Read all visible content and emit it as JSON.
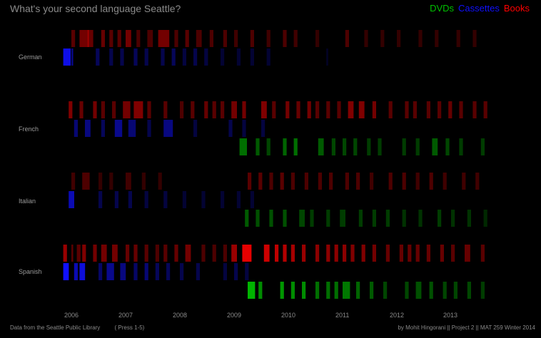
{
  "title": "What's your second language Seattle?",
  "legend": {
    "dvds": {
      "label": "DVDs",
      "color": "#00c000"
    },
    "cassettes": {
      "label": "Cassettes",
      "color": "#1010ff"
    },
    "books": {
      "label": "Books",
      "color": "#ff0000"
    }
  },
  "footer": {
    "source": "Data from the Seattle Public Library",
    "press": "( Press 1-5)",
    "credit": "by Mohit Hingorani || Project 2 || MAT 259 Winter 2014"
  },
  "chart_data": {
    "type": "heatmap",
    "title": "What's your second language Seattle?",
    "x_range": [
      2005.75,
      2013.85
    ],
    "years": [
      "2006",
      "2007",
      "2008",
      "2009",
      "2010",
      "2011",
      "2012",
      "2013"
    ],
    "languages": [
      {
        "name": "German",
        "books": [
          [
            2006.0,
            2,
            0.35
          ],
          [
            2006.15,
            5,
            0.45
          ],
          [
            2006.3,
            3,
            0.4
          ],
          [
            2006.55,
            2,
            0.4
          ],
          [
            2006.7,
            2,
            0.35
          ],
          [
            2006.85,
            2,
            0.35
          ],
          [
            2007.0,
            3,
            0.45
          ],
          [
            2007.2,
            2,
            0.3
          ],
          [
            2007.4,
            3,
            0.3
          ],
          [
            2007.6,
            6,
            0.45
          ],
          [
            2007.9,
            2,
            0.3
          ],
          [
            2008.1,
            2,
            0.35
          ],
          [
            2008.3,
            3,
            0.3
          ],
          [
            2008.55,
            2,
            0.3
          ],
          [
            2008.8,
            2,
            0.3
          ],
          [
            2009.0,
            2,
            0.25
          ],
          [
            2009.3,
            2,
            0.3
          ],
          [
            2009.6,
            2,
            0.25
          ],
          [
            2009.9,
            2,
            0.3
          ],
          [
            2010.1,
            2,
            0.25
          ],
          [
            2010.5,
            2,
            0.2
          ],
          [
            2011.05,
            2,
            0.3
          ],
          [
            2011.4,
            2,
            0.2
          ],
          [
            2011.7,
            2,
            0.2
          ],
          [
            2012.0,
            2,
            0.2
          ],
          [
            2012.4,
            2,
            0.2
          ],
          [
            2012.7,
            2,
            0.2
          ],
          [
            2013.1,
            2,
            0.2
          ],
          [
            2013.4,
            2,
            0.2
          ]
        ],
        "cassettes": [
          [
            2005.85,
            4,
            0.9
          ],
          [
            2006.0,
            1,
            0.5
          ],
          [
            2006.45,
            2,
            0.35
          ],
          [
            2006.7,
            2,
            0.3
          ],
          [
            2006.9,
            2,
            0.3
          ],
          [
            2007.15,
            2,
            0.35
          ],
          [
            2007.35,
            2,
            0.3
          ],
          [
            2007.65,
            2,
            0.3
          ],
          [
            2007.85,
            2,
            0.35
          ],
          [
            2008.05,
            2,
            0.25
          ],
          [
            2008.25,
            2,
            0.3
          ],
          [
            2008.45,
            2,
            0.25
          ],
          [
            2008.75,
            2,
            0.2
          ],
          [
            2009.05,
            2,
            0.2
          ],
          [
            2009.3,
            2,
            0.2
          ],
          [
            2009.6,
            2,
            0.2
          ],
          [
            2010.7,
            1,
            0.15
          ]
        ],
        "dvds": []
      },
      {
        "name": "French",
        "books": [
          [
            2005.95,
            2,
            0.5
          ],
          [
            2006.15,
            2,
            0.4
          ],
          [
            2006.4,
            2,
            0.45
          ],
          [
            2006.55,
            2,
            0.35
          ],
          [
            2006.75,
            2,
            0.35
          ],
          [
            2006.95,
            4,
            0.45
          ],
          [
            2007.15,
            5,
            0.5
          ],
          [
            2007.4,
            2,
            0.35
          ],
          [
            2007.7,
            2,
            0.35
          ],
          [
            2008.0,
            2,
            0.3
          ],
          [
            2008.2,
            2,
            0.35
          ],
          [
            2008.45,
            2,
            0.4
          ],
          [
            2008.6,
            2,
            0.35
          ],
          [
            2008.75,
            2,
            0.35
          ],
          [
            2008.95,
            3,
            0.45
          ],
          [
            2009.15,
            2,
            0.45
          ],
          [
            2009.5,
            3,
            0.5
          ],
          [
            2009.7,
            2,
            0.35
          ],
          [
            2009.95,
            2,
            0.45
          ],
          [
            2010.15,
            2,
            0.4
          ],
          [
            2010.35,
            2,
            0.45
          ],
          [
            2010.5,
            2,
            0.35
          ],
          [
            2010.7,
            2,
            0.35
          ],
          [
            2010.9,
            2,
            0.35
          ],
          [
            2011.1,
            3,
            0.5
          ],
          [
            2011.3,
            3,
            0.5
          ],
          [
            2011.55,
            2,
            0.45
          ],
          [
            2011.85,
            2,
            0.35
          ],
          [
            2012.15,
            2,
            0.35
          ],
          [
            2012.3,
            2,
            0.35
          ],
          [
            2012.55,
            2,
            0.35
          ],
          [
            2012.75,
            2,
            0.35
          ],
          [
            2012.95,
            2,
            0.4
          ],
          [
            2013.15,
            2,
            0.35
          ],
          [
            2013.4,
            2,
            0.35
          ],
          [
            2013.6,
            2,
            0.35
          ]
        ],
        "cassettes": [
          [
            2006.05,
            2,
            0.45
          ],
          [
            2006.25,
            3,
            0.5
          ],
          [
            2006.55,
            2,
            0.35
          ],
          [
            2006.8,
            4,
            0.55
          ],
          [
            2007.05,
            4,
            0.45
          ],
          [
            2007.4,
            2,
            0.3
          ],
          [
            2007.7,
            5,
            0.5
          ],
          [
            2008.25,
            2,
            0.25
          ],
          [
            2008.9,
            2,
            0.3
          ],
          [
            2009.15,
            2,
            0.25
          ],
          [
            2009.5,
            2,
            0.25
          ]
        ],
        "dvds": [
          [
            2009.1,
            4,
            0.55
          ],
          [
            2009.4,
            2,
            0.45
          ],
          [
            2009.6,
            2,
            0.35
          ],
          [
            2009.9,
            2,
            0.5
          ],
          [
            2010.1,
            2,
            0.55
          ],
          [
            2010.55,
            3,
            0.45
          ],
          [
            2010.8,
            2,
            0.35
          ],
          [
            2011.0,
            2,
            0.35
          ],
          [
            2011.2,
            2,
            0.35
          ],
          [
            2011.45,
            2,
            0.3
          ],
          [
            2011.65,
            2,
            0.3
          ],
          [
            2012.1,
            2,
            0.3
          ],
          [
            2012.35,
            2,
            0.3
          ],
          [
            2012.65,
            3,
            0.45
          ],
          [
            2012.9,
            2,
            0.35
          ],
          [
            2013.15,
            2,
            0.3
          ],
          [
            2013.55,
            2,
            0.3
          ]
        ]
      },
      {
        "name": "Italian",
        "books": [
          [
            2006.0,
            2,
            0.25
          ],
          [
            2006.2,
            4,
            0.3
          ],
          [
            2006.5,
            2,
            0.2
          ],
          [
            2006.7,
            2,
            0.2
          ],
          [
            2007.0,
            3,
            0.25
          ],
          [
            2007.3,
            2,
            0.2
          ],
          [
            2007.6,
            2,
            0.2
          ],
          [
            2009.25,
            2,
            0.35
          ],
          [
            2009.45,
            2,
            0.35
          ],
          [
            2009.65,
            2,
            0.3
          ],
          [
            2009.85,
            2,
            0.35
          ],
          [
            2010.05,
            2,
            0.3
          ],
          [
            2010.3,
            2,
            0.3
          ],
          [
            2010.55,
            2,
            0.3
          ],
          [
            2010.75,
            2,
            0.3
          ],
          [
            2011.05,
            2,
            0.3
          ],
          [
            2011.25,
            2,
            0.3
          ],
          [
            2011.5,
            2,
            0.25
          ],
          [
            2011.85,
            2,
            0.3
          ],
          [
            2012.1,
            2,
            0.3
          ],
          [
            2012.35,
            2,
            0.25
          ],
          [
            2012.6,
            2,
            0.3
          ],
          [
            2012.85,
            2,
            0.25
          ],
          [
            2013.2,
            2,
            0.25
          ],
          [
            2013.45,
            2,
            0.25
          ]
        ],
        "cassettes": [
          [
            2005.95,
            3,
            0.7
          ],
          [
            2006.5,
            2,
            0.3
          ],
          [
            2006.8,
            2,
            0.3
          ],
          [
            2007.05,
            2,
            0.3
          ],
          [
            2007.35,
            2,
            0.25
          ],
          [
            2007.7,
            2,
            0.25
          ],
          [
            2008.05,
            2,
            0.2
          ],
          [
            2008.4,
            2,
            0.2
          ],
          [
            2008.75,
            2,
            0.2
          ],
          [
            2009.05,
            2,
            0.2
          ],
          [
            2009.3,
            2,
            0.2
          ]
        ],
        "dvds": [
          [
            2009.2,
            2,
            0.45
          ],
          [
            2009.4,
            2,
            0.4
          ],
          [
            2009.65,
            2,
            0.4
          ],
          [
            2009.9,
            2,
            0.4
          ],
          [
            2010.2,
            3,
            0.35
          ],
          [
            2010.4,
            2,
            0.3
          ],
          [
            2010.7,
            2,
            0.3
          ],
          [
            2010.95,
            3,
            0.3
          ],
          [
            2011.3,
            2,
            0.3
          ],
          [
            2011.55,
            2,
            0.3
          ],
          [
            2011.8,
            2,
            0.3
          ],
          [
            2012.1,
            2,
            0.25
          ],
          [
            2012.4,
            2,
            0.25
          ],
          [
            2012.75,
            2,
            0.3
          ],
          [
            2013.0,
            2,
            0.25
          ],
          [
            2013.3,
            2,
            0.25
          ],
          [
            2013.6,
            2,
            0.2
          ]
        ]
      },
      {
        "name": "Spanish",
        "books": [
          [
            2005.85,
            2,
            0.6
          ],
          [
            2006.0,
            1,
            0.35
          ],
          [
            2006.1,
            2,
            0.35
          ],
          [
            2006.2,
            2,
            0.5
          ],
          [
            2006.4,
            2,
            0.45
          ],
          [
            2006.55,
            3,
            0.45
          ],
          [
            2006.75,
            3,
            0.45
          ],
          [
            2007.0,
            2,
            0.4
          ],
          [
            2007.15,
            2,
            0.4
          ],
          [
            2007.35,
            2,
            0.35
          ],
          [
            2007.55,
            2,
            0.3
          ],
          [
            2007.7,
            2,
            0.35
          ],
          [
            2007.9,
            2,
            0.4
          ],
          [
            2008.1,
            3,
            0.45
          ],
          [
            2008.4,
            2,
            0.3
          ],
          [
            2008.6,
            2,
            0.3
          ],
          [
            2008.8,
            2,
            0.3
          ],
          [
            2008.95,
            3,
            0.6
          ],
          [
            2009.15,
            5,
            0.9
          ],
          [
            2009.55,
            3,
            0.8
          ],
          [
            2009.75,
            2,
            0.75
          ],
          [
            2009.9,
            2,
            0.7
          ],
          [
            2010.05,
            2,
            0.65
          ],
          [
            2010.25,
            2,
            0.6
          ],
          [
            2010.5,
            2,
            0.55
          ],
          [
            2010.7,
            2,
            0.55
          ],
          [
            2010.85,
            2,
            0.55
          ],
          [
            2011.0,
            2,
            0.55
          ],
          [
            2011.15,
            2,
            0.5
          ],
          [
            2011.35,
            2,
            0.5
          ],
          [
            2011.55,
            2,
            0.45
          ],
          [
            2011.8,
            2,
            0.4
          ],
          [
            2012.05,
            2,
            0.4
          ],
          [
            2012.2,
            2,
            0.4
          ],
          [
            2012.35,
            2,
            0.4
          ],
          [
            2012.55,
            2,
            0.4
          ],
          [
            2012.8,
            2,
            0.4
          ],
          [
            2013.0,
            2,
            0.35
          ],
          [
            2013.25,
            3,
            0.4
          ],
          [
            2013.55,
            2,
            0.35
          ]
        ],
        "cassettes": [
          [
            2005.85,
            3,
            1.0
          ],
          [
            2006.05,
            2,
            0.7
          ],
          [
            2006.15,
            3,
            0.85
          ],
          [
            2006.5,
            2,
            0.4
          ],
          [
            2006.65,
            4,
            0.55
          ],
          [
            2006.9,
            3,
            0.5
          ],
          [
            2007.15,
            2,
            0.4
          ],
          [
            2007.35,
            2,
            0.45
          ],
          [
            2007.55,
            2,
            0.35
          ],
          [
            2007.75,
            2,
            0.35
          ],
          [
            2008.0,
            2,
            0.3
          ],
          [
            2008.3,
            2,
            0.3
          ],
          [
            2008.8,
            2,
            0.25
          ],
          [
            2009.0,
            2,
            0.3
          ],
          [
            2009.2,
            2,
            0.25
          ]
        ],
        "dvds": [
          [
            2009.25,
            4,
            0.9
          ],
          [
            2009.45,
            2,
            0.7
          ],
          [
            2009.85,
            2,
            0.75
          ],
          [
            2010.05,
            2,
            0.7
          ],
          [
            2010.25,
            2,
            0.7
          ],
          [
            2010.5,
            2,
            0.55
          ],
          [
            2010.7,
            2,
            0.55
          ],
          [
            2010.85,
            2,
            0.55
          ],
          [
            2011.0,
            4,
            0.6
          ],
          [
            2011.25,
            2,
            0.5
          ],
          [
            2011.5,
            2,
            0.45
          ],
          [
            2011.75,
            2,
            0.35
          ],
          [
            2012.15,
            2,
            0.35
          ],
          [
            2012.35,
            3,
            0.4
          ],
          [
            2012.6,
            2,
            0.4
          ],
          [
            2012.85,
            2,
            0.35
          ],
          [
            2013.05,
            2,
            0.35
          ],
          [
            2013.3,
            2,
            0.35
          ],
          [
            2013.55,
            2,
            0.3
          ]
        ]
      }
    ]
  }
}
